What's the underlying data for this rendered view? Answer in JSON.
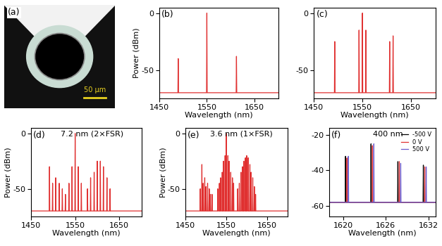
{
  "photo": {
    "label": "(a)",
    "scale_bar": "50 μm"
  },
  "chart_data": [
    {
      "type": "line",
      "label": "(b)",
      "xlabel": "Wavelength (nm)",
      "ylabel": "Power (dBm)",
      "xlim": [
        1450,
        1700
      ],
      "xticks": [
        1450,
        1550,
        1650
      ],
      "ylim": [
        -75,
        5
      ],
      "yticks": [
        -50,
        0
      ],
      "floor": -70,
      "series": [
        {
          "color": "#e03030",
          "x": [
            1490,
            1550,
            1612
          ],
          "values": [
            -40,
            0,
            -38
          ]
        }
      ]
    },
    {
      "type": "line",
      "label": "(c)",
      "xlabel": "Wavelength (nm)",
      "xlim": [
        1450,
        1700
      ],
      "xticks": [
        1450,
        1550,
        1650
      ],
      "ylim": [
        -75,
        5
      ],
      "yticks": [
        -50,
        0
      ],
      "floor": -70,
      "series": [
        {
          "color": "#e03030",
          "x": [
            1493,
            1543,
            1550,
            1557,
            1606,
            1613
          ],
          "values": [
            -25,
            -15,
            0,
            -15,
            -25,
            -20
          ]
        }
      ]
    },
    {
      "type": "line",
      "label": "(d)",
      "annotation": "7.2 nm (2×FSR)",
      "xlabel": "Wavelength (nm)",
      "ylabel": "Power (dBm)",
      "xlim": [
        1450,
        1700
      ],
      "xticks": [
        1450,
        1550,
        1650
      ],
      "ylim": [
        -75,
        5
      ],
      "yticks": [
        -50,
        0
      ],
      "floor": -70,
      "series": [
        {
          "color": "#e03030",
          "x": [
            1492,
            1499,
            1506,
            1514,
            1521,
            1528,
            1536,
            1543,
            1550,
            1557,
            1564,
            1578,
            1585,
            1593,
            1600,
            1607,
            1614,
            1622,
            1629
          ],
          "values": [
            -30,
            -45,
            -40,
            -45,
            -50,
            -55,
            -45,
            -30,
            0,
            -30,
            -45,
            -50,
            -40,
            -35,
            -25,
            -25,
            -30,
            -40,
            -50
          ]
        }
      ]
    },
    {
      "type": "line",
      "label": "(e)",
      "annotation": "3.6 nm (1×FSR)",
      "xlabel": "Wavelength (nm)",
      "ylabel": "Power (dBm)",
      "xlim": [
        1450,
        1700
      ],
      "xticks": [
        1450,
        1550,
        1650
      ],
      "ylim": [
        -75,
        5
      ],
      "yticks": [
        -50,
        0
      ],
      "floor": -70,
      "series": [
        {
          "color": "#e03030",
          "x": [
            1486,
            1490,
            1493,
            1497,
            1500,
            1504,
            1508,
            1511,
            1515,
            1529,
            1533,
            1536,
            1540,
            1543,
            1547,
            1550,
            1554,
            1557,
            1561,
            1565,
            1568,
            1578,
            1582,
            1586,
            1590,
            1593,
            1597,
            1600,
            1604,
            1608,
            1611,
            1615,
            1619,
            1622
          ],
          "values": [
            -50,
            -28,
            -45,
            -40,
            -48,
            -45,
            -50,
            -55,
            -55,
            -50,
            -45,
            -40,
            -35,
            -25,
            -20,
            0,
            -20,
            -25,
            -35,
            -40,
            -45,
            -50,
            -45,
            -35,
            -30,
            -25,
            -22,
            -20,
            -22,
            -28,
            -35,
            -40,
            -48,
            -55
          ]
        }
      ]
    },
    {
      "type": "line",
      "label": "(f)",
      "annotation": "400 nm",
      "xlabel": "Wavelength (nm)",
      "xlim": [
        1618,
        1633
      ],
      "xticks": [
        1620,
        1626,
        1632
      ],
      "ylim": [
        -66,
        -16
      ],
      "yticks": [
        -60,
        -40,
        -20
      ],
      "floor": -58,
      "legend": "upper right",
      "series": [
        {
          "name": "-500 V",
          "color": "#000000",
          "x": [
            1620.3,
            1623.9,
            1627.7,
            1631.3
          ],
          "values": [
            -32,
            -25,
            -35,
            -37
          ]
        },
        {
          "name": "0 V",
          "color": "#e03030",
          "x": [
            1620.5,
            1624.1,
            1627.9,
            1631.5
          ],
          "values": [
            -33,
            -26,
            -35,
            -38
          ]
        },
        {
          "name": "500 V",
          "color": "#6a5acd",
          "x": [
            1620.7,
            1624.3,
            1628.1,
            1631.7
          ],
          "values": [
            -32,
            -25,
            -36,
            -38
          ]
        }
      ]
    }
  ]
}
